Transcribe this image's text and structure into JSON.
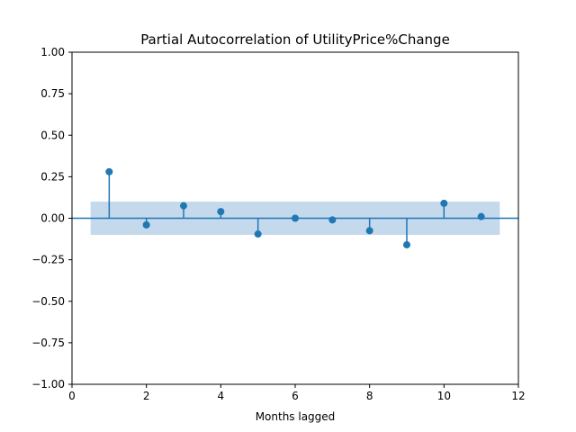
{
  "chart_data": {
    "type": "scatter",
    "subtype": "stem",
    "title": "Partial Autocorrelation of UtilityPrice%Change",
    "xlabel": "Months lagged",
    "ylabel": "",
    "xlim": [
      0,
      12
    ],
    "ylim": [
      -1.0,
      1.0
    ],
    "x_ticks": [
      0,
      2,
      4,
      6,
      8,
      10,
      12
    ],
    "x_tick_labels": [
      "0",
      "2",
      "4",
      "6",
      "8",
      "10",
      "12"
    ],
    "y_ticks": [
      -1.0,
      -0.75,
      -0.5,
      -0.25,
      0.0,
      0.25,
      0.5,
      0.75,
      1.0
    ],
    "y_tick_labels": [
      "−1.00",
      "−0.75",
      "−0.50",
      "−0.25",
      "0.00",
      "0.25",
      "0.50",
      "0.75",
      "1.00"
    ],
    "grid": false,
    "confidence_band": {
      "lower": -0.1,
      "upper": 0.1,
      "x_range": [
        0.5,
        11.5
      ]
    },
    "series": [
      {
        "x": [
          1,
          2,
          3,
          4,
          5,
          6,
          7,
          8,
          9,
          10,
          11
        ],
        "values": [
          0.28,
          -0.04,
          0.075,
          0.04,
          -0.095,
          0.0,
          -0.01,
          -0.075,
          -0.16,
          0.09,
          0.01
        ]
      }
    ],
    "colors": {
      "marker": "#1f77b4",
      "band": "#c5d9ec",
      "zero_line": "#1f77b4"
    }
  }
}
